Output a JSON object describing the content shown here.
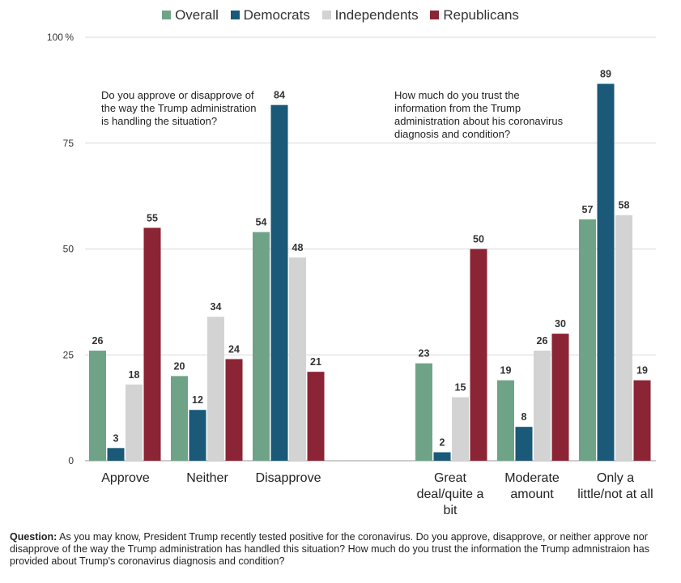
{
  "chart_data": {
    "type": "bar",
    "series": [
      {
        "name": "Overall",
        "color": "#6fa387",
        "values": [
          26,
          20,
          54,
          23,
          19,
          57
        ]
      },
      {
        "name": "Democrats",
        "color": "#1a5977",
        "values": [
          3,
          12,
          84,
          2,
          8,
          89
        ]
      },
      {
        "name": "Independents",
        "color": "#d3d3d3",
        "values": [
          18,
          34,
          48,
          15,
          26,
          58
        ]
      },
      {
        "name": "Republicans",
        "color": "#8b2434",
        "values": [
          55,
          24,
          21,
          50,
          30,
          19
        ]
      }
    ],
    "categories": [
      "Approve",
      "Neither",
      "Disapprove",
      "Great deal/quite a bit",
      "Moderate amount",
      "Only a little/not at all"
    ],
    "groups": [
      {
        "question": "Do you approve or disapprove of the way the Trump administration is handling the situation?",
        "categories": [
          "Approve",
          "Neither",
          "Disapprove"
        ]
      },
      {
        "question": "How much do you trust the information from the Trump administration about his coronavirus diagnosis and condition?",
        "categories": [
          "Great deal/quite a bit",
          "Moderate amount",
          "Only a little/not at all"
        ]
      }
    ],
    "yticks": [
      "0",
      "25",
      "50",
      "75",
      "100"
    ],
    "y_unit": "%",
    "ylim": [
      0,
      100
    ],
    "grid": true,
    "legend_position": "top"
  },
  "footnote": {
    "label": "Question:",
    "text": "As you may know, President Trump recently tested positive for the coronavirus. Do you approve, disapprove, or neither approve nor disapprove of the way the Trump administration has handled this situation? How much do you trust the information the Trump admnistraion has provided about Trump's coronavirus diagnosis and condition?"
  }
}
